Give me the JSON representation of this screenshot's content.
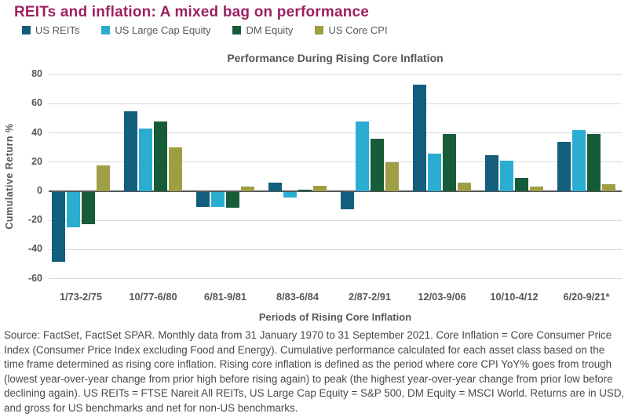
{
  "page": {
    "title": "REITs and inflation: A mixed bag on performance",
    "footnote": "Source: FactSet, FactSet SPAR. Monthly data from 31 January 1970 to 31 September 2021. Core Inflation = Core Consumer Price Index (Consumer Price Index excluding Food and Energy). Cumulative performance calculated for each asset class based on the time frame determined as rising core inflation. Rising core inflation is defined as the period where core CPI YoY% goes from trough (lowest year-over-year change from prior high before rising again) to peak (the highest year-over-year change from prior low before declining again). US REITs = FTSE Nareit All REITs, US Large Cap Equity = S&P 500, DM Equity = MSCI World. Returns are in USD, and gross for US benchmarks and net for non-US benchmarks."
  },
  "colors": {
    "title_text": "#9c2162",
    "axis_text": "#55585b",
    "gridline": "#d9d9d9",
    "zero_line": "#55565a",
    "footnote_text": "#48494b"
  },
  "chart_data": {
    "type": "bar",
    "title": "Performance During Rising Core Inflation",
    "xlabel": "Periods of Rising Core Inflation",
    "ylabel": "Cumulative Return %",
    "ylim": [
      -60,
      80
    ],
    "ytick_interval": 20,
    "grid": true,
    "legend_position": "top-left",
    "categories": [
      "1/73-2/75",
      "10/77-6/80",
      "6/81-9/81",
      "8/83-6/84",
      "2/87-2/91",
      "12/03-9/06",
      "10/10-4/12",
      "6/20-9/21*"
    ],
    "series": [
      {
        "name": "US REITs",
        "color": "#125e7c",
        "values": [
          -48,
          55,
          -10,
          6,
          -12,
          73,
          25,
          34
        ]
      },
      {
        "name": "US Large Cap Equity",
        "color": "#2badd1",
        "values": [
          -24,
          43,
          -10,
          -4,
          48,
          26,
          21,
          42
        ]
      },
      {
        "name": "DM Equity",
        "color": "#175c38",
        "values": [
          -22,
          48,
          -11,
          1,
          36,
          39,
          9,
          39
        ]
      },
      {
        "name": "US Core CPI",
        "color": "#a09e44",
        "values": [
          18,
          30,
          3,
          4,
          20,
          6,
          3,
          5
        ]
      }
    ]
  }
}
